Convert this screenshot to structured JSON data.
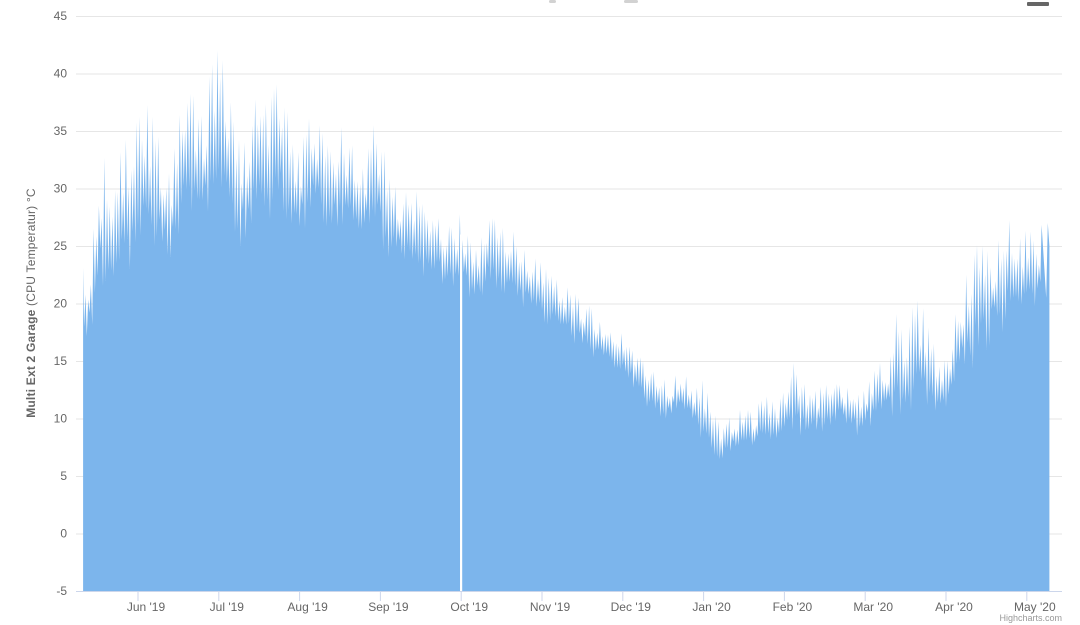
{
  "chart_data": {
    "type": "area",
    "series_color": "#7cb5ec",
    "plot_bg": "#ffffff",
    "grid_color": "#e6e6e6",
    "axis_line_color": "#ccd6eb",
    "tick_color": "#ccd6eb",
    "label_color": "#666666",
    "yaxis": {
      "title_bold": "Multi Ext 2 Garage",
      "title_regular": " (CPU Temperatur) °C",
      "ticks": [
        45,
        40,
        35,
        30,
        25,
        20,
        15,
        10,
        5,
        0,
        -5
      ],
      "min": -5,
      "max": 45
    },
    "xaxis": {
      "labels": [
        "Jun '19",
        "Jul '19",
        "Aug '19",
        "Sep '19",
        "Oct '19",
        "Nov '19",
        "Dec '19",
        "Jan '20",
        "Feb '20",
        "Mar '20",
        "Apr '20",
        "May '20"
      ]
    },
    "x_unit": "months offset from Jun 2019 tick",
    "x_start": -0.68,
    "x_end": 11.28,
    "gap_at": 4.0,
    "envelope": {
      "x0": -0.7,
      "x_step": 0.1,
      "lo": [
        17.5,
        17.0,
        20.5,
        22.0,
        21.0,
        22.5,
        23.0,
        24.0,
        25.0,
        25.0,
        24.0,
        23.0,
        26.0,
        28.0,
        28.0,
        27.0,
        28.5,
        29.0,
        28.0,
        25.0,
        25.0,
        27.0,
        28.0,
        27.0,
        28.0,
        28.0,
        26.0,
        25.5,
        27.0,
        28.0,
        27.0,
        26.0,
        27.0,
        26.5,
        26.0,
        25.0,
        25.5,
        25.0,
        24.0,
        23.5,
        23.0,
        23.0,
        22.5,
        22.0,
        22.0,
        21.5,
        21.5,
        21.0,
        20.5,
        20.0,
        21.0,
        21.5,
        21.0,
        20.5,
        20.0,
        19.5,
        19.0,
        18.5,
        18.0,
        17.5,
        17.0,
        16.5,
        16.0,
        15.5,
        15.0,
        14.5,
        14.0,
        13.5,
        13.0,
        12.0,
        11.0,
        10.5,
        10.0,
        10.0,
        10.5,
        10.0,
        9.0,
        8.0,
        6.5,
        5.8,
        6.5,
        7.0,
        7.5,
        7.0,
        7.5,
        8.0,
        7.5,
        8.0,
        9.0,
        8.5,
        8.0,
        8.5,
        9.0,
        9.0,
        9.5,
        9.0,
        8.5,
        9.0,
        9.5,
        10.0,
        10.0,
        10.5,
        10.0,
        11.0,
        11.5,
        11.0,
        10.5,
        11.0,
        12.0,
        13.0,
        14.0,
        15.0,
        16.0,
        17.0,
        17.5,
        18.0,
        18.0,
        18.5,
        19.0,
        20.0
      ],
      "hi": [
        24.5,
        22.0,
        31.0,
        33.0,
        29.0,
        34.0,
        34.5,
        36.0,
        37.5,
        36.0,
        33.0,
        31.0,
        36.0,
        38.5,
        38.0,
        36.0,
        40.5,
        42.3,
        40.0,
        35.0,
        33.5,
        36.5,
        39.0,
        37.0,
        39.0,
        39.3,
        34.0,
        33.0,
        36.0,
        36.5,
        34.5,
        33.0,
        35.5,
        34.5,
        33.0,
        31.5,
        35.5,
        35.5,
        31.0,
        30.0,
        29.5,
        30.5,
        29.0,
        27.0,
        27.5,
        27.0,
        26.5,
        28.0,
        25.5,
        24.5,
        27.0,
        27.5,
        26.5,
        27.0,
        25.5,
        24.5,
        24.0,
        23.5,
        22.5,
        22.0,
        21.5,
        21.0,
        20.0,
        19.8,
        18.5,
        18.0,
        17.0,
        17.5,
        16.0,
        15.5,
        14.5,
        14.0,
        13.5,
        13.0,
        14.5,
        13.5,
        12.5,
        13.5,
        11.0,
        9.5,
        10.0,
        10.5,
        11.0,
        10.5,
        11.5,
        12.0,
        11.0,
        12.5,
        15.0,
        14.0,
        12.0,
        12.5,
        13.0,
        12.5,
        13.5,
        12.5,
        12.0,
        12.5,
        14.0,
        15.0,
        14.5,
        20.0,
        15.5,
        20.5,
        20.0,
        17.5,
        15.5,
        15.0,
        18.5,
        22.0,
        23.0,
        25.5,
        24.5,
        25.0,
        26.0,
        27.5,
        25.5,
        26.5,
        26.0,
        27.0
      ]
    },
    "credit": "Highcharts.com"
  }
}
